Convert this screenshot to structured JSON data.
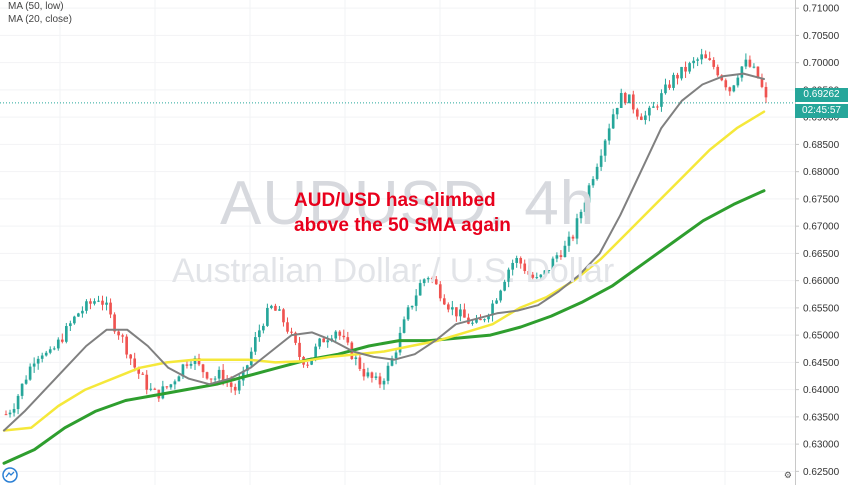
{
  "legend": {
    "ma50": "MA (50, low)",
    "ma20": "MA (20, close)"
  },
  "watermark": {
    "title": "AUDUSD, 4h",
    "subtitle": "Australian Dollar / U.S. Dollar"
  },
  "annotation": {
    "line1": "AUD/USD has climbed",
    "line2": "above the 50 SMA again"
  },
  "badges": {
    "price": "0.69262",
    "timer": "02:45:57"
  },
  "colors": {
    "up": "#26a69a",
    "down": "#ef5350",
    "ma20": "#808080",
    "ma50": "#f5e83a",
    "ma100": "#2e9e2e",
    "annotation": "#e8001c",
    "axis_text": "#333333"
  },
  "chart_data": {
    "type": "candlestick",
    "y_axis_ticks": [
      "0.71000",
      "0.70500",
      "0.70000",
      "0.69500",
      "0.69000",
      "0.68500",
      "0.68000",
      "0.67500",
      "0.67000",
      "0.66500",
      "0.66000",
      "0.65500",
      "0.65000",
      "0.64500",
      "0.64000",
      "0.63500",
      "0.63000",
      "0.62500"
    ],
    "ylim": [
      0.6225,
      0.7115
    ],
    "last_price": 0.69262,
    "close_path": [
      0.6355,
      0.637,
      0.64,
      0.643,
      0.646,
      0.647,
      0.646,
      0.648,
      0.65,
      0.652,
      0.654,
      0.655,
      0.656,
      0.657,
      0.655,
      0.652,
      0.65,
      0.647,
      0.644,
      0.642,
      0.64,
      0.639,
      0.64,
      0.641,
      0.643,
      0.645,
      0.646,
      0.644,
      0.643,
      0.642,
      0.643,
      0.641,
      0.64,
      0.642,
      0.646,
      0.65,
      0.653,
      0.655,
      0.654,
      0.652,
      0.649,
      0.646,
      0.645,
      0.647,
      0.649,
      0.65,
      0.651,
      0.649,
      0.647,
      0.645,
      0.643,
      0.642,
      0.641,
      0.643,
      0.646,
      0.65,
      0.654,
      0.657,
      0.66,
      0.661,
      0.659,
      0.657,
      0.655,
      0.654,
      0.653,
      0.652,
      0.652,
      0.654,
      0.656,
      0.659,
      0.662,
      0.664,
      0.663,
      0.661,
      0.66,
      0.661,
      0.663,
      0.665,
      0.666,
      0.668,
      0.672,
      0.676,
      0.68,
      0.684,
      0.688,
      0.692,
      0.694,
      0.693,
      0.691,
      0.69,
      0.691,
      0.693,
      0.695,
      0.697,
      0.698,
      0.699,
      0.7,
      0.701,
      0.7,
      0.699,
      0.697,
      0.695,
      0.698,
      0.7,
      0.699,
      0.697,
      0.693
    ],
    "ma20_points": [
      0.6325,
      0.636,
      0.64,
      0.644,
      0.648,
      0.651,
      0.651,
      0.648,
      0.644,
      0.642,
      0.641,
      0.642,
      0.644,
      0.647,
      0.65,
      0.6505,
      0.649,
      0.647,
      0.646,
      0.6455,
      0.6465,
      0.649,
      0.652,
      0.653,
      0.654,
      0.6545,
      0.6555,
      0.658,
      0.661,
      0.665,
      0.672,
      0.68,
      0.688,
      0.693,
      0.696,
      0.6975,
      0.698,
      0.697
    ],
    "ma50_points": [
      0.6325,
      0.633,
      0.637,
      0.64,
      0.642,
      0.644,
      0.645,
      0.6455,
      0.6455,
      0.6455,
      0.645,
      0.6452,
      0.646,
      0.6465,
      0.647,
      0.648,
      0.649,
      0.6505,
      0.652,
      0.655,
      0.657,
      0.66,
      0.664,
      0.669,
      0.674,
      0.679,
      0.684,
      0.688,
      0.691
    ],
    "ma100_points": [
      0.6265,
      0.629,
      0.633,
      0.636,
      0.638,
      0.639,
      0.64,
      0.641,
      0.6425,
      0.644,
      0.6455,
      0.6465,
      0.648,
      0.649,
      0.649,
      0.6495,
      0.65,
      0.6515,
      0.6535,
      0.656,
      0.659,
      0.663,
      0.667,
      0.671,
      0.674,
      0.6765
    ]
  }
}
